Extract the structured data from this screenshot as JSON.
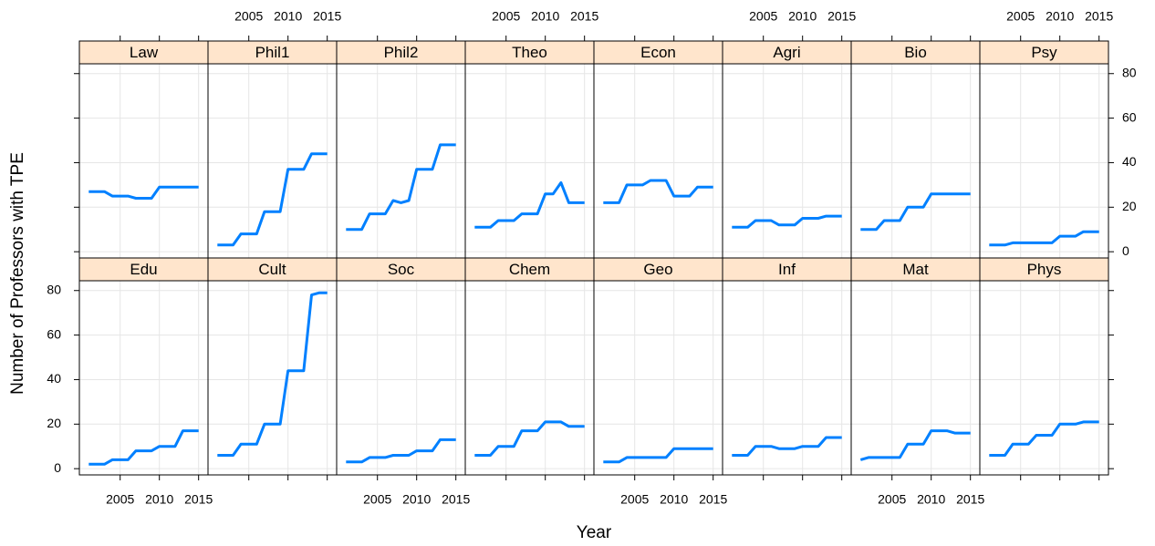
{
  "chart_data": {
    "type": "line",
    "xlabel": "Year",
    "ylabel": "Number of Professors with TPE",
    "x": [
      2001,
      2002,
      2003,
      2004,
      2005,
      2006,
      2007,
      2008,
      2009,
      2010,
      2011,
      2012,
      2013,
      2014,
      2015
    ],
    "xlim": [
      1999.8,
      2016.2
    ],
    "xticks": [
      2005,
      2010,
      2015
    ],
    "ylim": [
      -2.8,
      84.4
    ],
    "yticks": [
      0,
      20,
      40,
      60,
      80
    ],
    "color": "#0080ff",
    "grid": true,
    "panels": [
      {
        "name": "Law",
        "values": [
          27,
          27,
          27,
          25,
          25,
          25,
          24,
          24,
          24,
          29,
          29,
          29,
          29,
          29,
          29
        ]
      },
      {
        "name": "Phil1",
        "values": [
          3,
          3,
          3,
          8,
          8,
          8,
          18,
          18,
          18,
          37,
          37,
          37,
          44,
          44,
          44
        ]
      },
      {
        "name": "Phil2",
        "values": [
          10,
          10,
          10,
          17,
          17,
          17,
          23,
          22,
          23,
          37,
          37,
          37,
          48,
          48,
          48
        ]
      },
      {
        "name": "Theo",
        "values": [
          11,
          11,
          11,
          14,
          14,
          14,
          17,
          17,
          17,
          26,
          26,
          31,
          22,
          22,
          22
        ]
      },
      {
        "name": "Econ",
        "values": [
          22,
          22,
          22,
          30,
          30,
          30,
          32,
          32,
          32,
          25,
          25,
          25,
          29,
          29,
          29
        ]
      },
      {
        "name": "Agri",
        "values": [
          11,
          11,
          11,
          14,
          14,
          14,
          12,
          12,
          12,
          15,
          15,
          15,
          16,
          16,
          16
        ]
      },
      {
        "name": "Bio",
        "values": [
          10,
          10,
          10,
          14,
          14,
          14,
          20,
          20,
          20,
          26,
          26,
          26,
          26,
          26,
          26
        ]
      },
      {
        "name": "Psy",
        "values": [
          3,
          3,
          3,
          4,
          4,
          4,
          4,
          4,
          4,
          7,
          7,
          7,
          9,
          9,
          9
        ]
      },
      {
        "name": "Edu",
        "values": [
          2,
          2,
          2,
          4,
          4,
          4,
          8,
          8,
          8,
          10,
          10,
          10,
          17,
          17,
          17
        ]
      },
      {
        "name": "Cult",
        "values": [
          6,
          6,
          6,
          11,
          11,
          11,
          20,
          20,
          20,
          44,
          44,
          44,
          78,
          79,
          79
        ]
      },
      {
        "name": "Soc",
        "values": [
          3,
          3,
          3,
          5,
          5,
          5,
          6,
          6,
          6,
          8,
          8,
          8,
          13,
          13,
          13
        ]
      },
      {
        "name": "Chem",
        "values": [
          6,
          6,
          6,
          10,
          10,
          10,
          17,
          17,
          17,
          21,
          21,
          21,
          19,
          19,
          19
        ]
      },
      {
        "name": "Geo",
        "values": [
          3,
          3,
          3,
          5,
          5,
          5,
          5,
          5,
          5,
          9,
          9,
          9,
          9,
          9,
          9
        ]
      },
      {
        "name": "Inf",
        "values": [
          6,
          6,
          6,
          10,
          10,
          10,
          9,
          9,
          9,
          10,
          10,
          10,
          14,
          14,
          14
        ]
      },
      {
        "name": "Mat",
        "values": [
          4,
          5,
          5,
          5,
          5,
          5,
          11,
          11,
          11,
          17,
          17,
          17,
          16,
          16,
          16
        ]
      },
      {
        "name": "Phys",
        "values": [
          6,
          6,
          6,
          11,
          11,
          11,
          15,
          15,
          15,
          20,
          20,
          20,
          21,
          21,
          21
        ]
      }
    ]
  }
}
